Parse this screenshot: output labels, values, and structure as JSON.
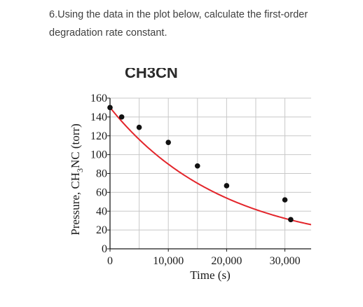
{
  "question": {
    "text": "6.Using the data in the plot below, calculate the first-order degradation rate constant."
  },
  "chart_data": {
    "type": "scatter",
    "xlabel": "Time (s)",
    "ylabel_parts": [
      "Pressure, CH",
      "3",
      "NC (torr)"
    ],
    "x_tick_labels": [
      "0",
      "10,000",
      "20,000",
      "30,000"
    ],
    "x_ticks": [
      0,
      10000,
      20000,
      30000
    ],
    "y_tick_labels": [
      "0",
      "20",
      "40",
      "60",
      "80",
      "100",
      "120",
      "140",
      "160"
    ],
    "y_ticks": [
      0,
      20,
      40,
      60,
      80,
      100,
      120,
      140,
      160
    ],
    "xlim": [
      0,
      34500
    ],
    "ylim": [
      0,
      160
    ],
    "grid": true,
    "marker_color": "#111111",
    "curve_color": "#e3252b",
    "points": [
      {
        "x": 0,
        "y": 150
      },
      {
        "x": 2000,
        "y": 140
      },
      {
        "x": 5000,
        "y": 129
      },
      {
        "x": 10000,
        "y": 113
      },
      {
        "x": 15000,
        "y": 88
      },
      {
        "x": 20000,
        "y": 67
      },
      {
        "x": 30000,
        "y": 52
      },
      {
        "x": 31000,
        "y": 31
      }
    ],
    "fit": {
      "p0": 150,
      "k": 5.12e-05,
      "x_end": 34500
    },
    "cropped_header_text": "CH3CN"
  }
}
